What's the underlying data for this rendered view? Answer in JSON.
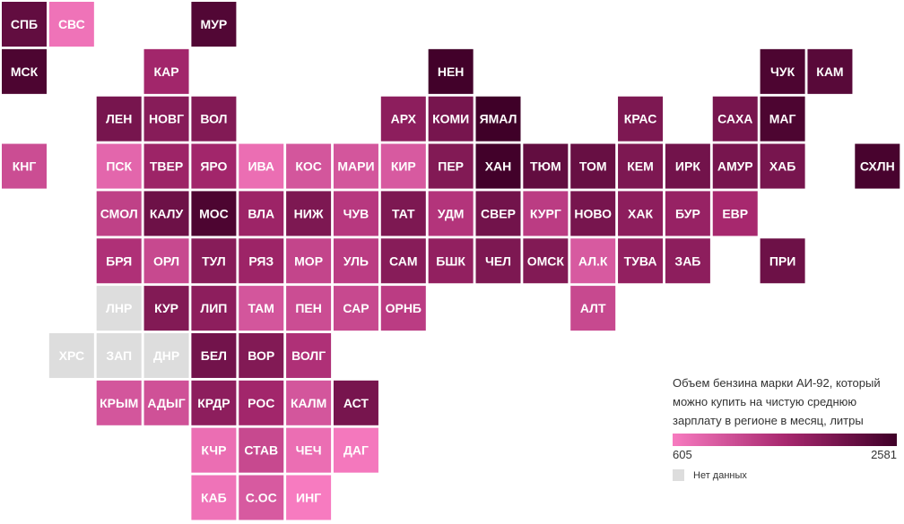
{
  "chart_data": {
    "type": "heatmap",
    "title": "",
    "value_min": 605,
    "value_max": 2581,
    "colors": {
      "low": "#f77bc0",
      "mid": "#a8286f",
      "high": "#3f0028",
      "nodata": "#dddddd"
    },
    "legend": {
      "title": "Объем бензина марки АИ-92, который можно купить на чистую среднюю зарплату в регионе в месяц, литры",
      "min_label": "605",
      "max_label": "2581",
      "nodata_label": "Нет данных"
    },
    "tiles": [
      {
        "code": "СПБ",
        "col": 0,
        "row": 0,
        "value": 2250
      },
      {
        "code": "СВС",
        "col": 1,
        "row": 0,
        "value": 700
      },
      {
        "code": "МУР",
        "col": 4,
        "row": 0,
        "value": 2400
      },
      {
        "code": "МСК",
        "col": 0,
        "row": 1,
        "value": 2450
      },
      {
        "code": "КАР",
        "col": 3,
        "row": 1,
        "value": 1650
      },
      {
        "code": "НЕН",
        "col": 9,
        "row": 1,
        "value": 2550
      },
      {
        "code": "ЧУК",
        "col": 16,
        "row": 1,
        "value": 2450
      },
      {
        "code": "КАМ",
        "col": 17,
        "row": 1,
        "value": 2350
      },
      {
        "code": "ЛЕН",
        "col": 2,
        "row": 2,
        "value": 2050
      },
      {
        "code": "НОВГ",
        "col": 3,
        "row": 2,
        "value": 1900
      },
      {
        "code": "ВОЛ",
        "col": 4,
        "row": 2,
        "value": 1950
      },
      {
        "code": "АРХ",
        "col": 8,
        "row": 2,
        "value": 1850
      },
      {
        "code": "КОМИ",
        "col": 9,
        "row": 2,
        "value": 2050
      },
      {
        "code": "ЯМАЛ",
        "col": 10,
        "row": 2,
        "value": 2581
      },
      {
        "code": "КРАС",
        "col": 13,
        "row": 2,
        "value": 2000
      },
      {
        "code": "САХА",
        "col": 15,
        "row": 2,
        "value": 2050
      },
      {
        "code": "МАГ",
        "col": 16,
        "row": 2,
        "value": 2450
      },
      {
        "code": "КНГ",
        "col": 0,
        "row": 3,
        "value": 1150
      },
      {
        "code": "ПСК",
        "col": 2,
        "row": 3,
        "value": 850
      },
      {
        "code": "ТВЕР",
        "col": 3,
        "row": 3,
        "value": 1700
      },
      {
        "code": "ЯРО",
        "col": 4,
        "row": 3,
        "value": 1650
      },
      {
        "code": "ИВА",
        "col": 5,
        "row": 3,
        "value": 760
      },
      {
        "code": "КОС",
        "col": 6,
        "row": 3,
        "value": 1050
      },
      {
        "code": "МАРИ",
        "col": 7,
        "row": 3,
        "value": 1050
      },
      {
        "code": "КИР",
        "col": 8,
        "row": 3,
        "value": 1000
      },
      {
        "code": "ПЕР",
        "col": 9,
        "row": 3,
        "value": 1950
      },
      {
        "code": "ХАН",
        "col": 10,
        "row": 3,
        "value": 2550
      },
      {
        "code": "ТЮМ",
        "col": 11,
        "row": 3,
        "value": 2250
      },
      {
        "code": "ТОМ",
        "col": 12,
        "row": 3,
        "value": 2200
      },
      {
        "code": "КЕМ",
        "col": 13,
        "row": 3,
        "value": 2000
      },
      {
        "code": "ИРК",
        "col": 14,
        "row": 3,
        "value": 2100
      },
      {
        "code": "АМУР",
        "col": 15,
        "row": 3,
        "value": 2050
      },
      {
        "code": "ХАБ",
        "col": 16,
        "row": 3,
        "value": 2050
      },
      {
        "code": "СХЛН",
        "col": 18,
        "row": 3,
        "value": 2500
      },
      {
        "code": "СМОЛ",
        "col": 2,
        "row": 4,
        "value": 1300
      },
      {
        "code": "КАЛУ",
        "col": 3,
        "row": 4,
        "value": 2150
      },
      {
        "code": "МОС",
        "col": 4,
        "row": 4,
        "value": 2450
      },
      {
        "code": "ВЛА",
        "col": 5,
        "row": 4,
        "value": 1700
      },
      {
        "code": "НИЖ",
        "col": 6,
        "row": 4,
        "value": 2000
      },
      {
        "code": "ЧУВ",
        "col": 7,
        "row": 4,
        "value": 1400
      },
      {
        "code": "ТАТ",
        "col": 8,
        "row": 4,
        "value": 2000
      },
      {
        "code": "УДМ",
        "col": 9,
        "row": 4,
        "value": 1450
      },
      {
        "code": "СВЕР",
        "col": 10,
        "row": 4,
        "value": 2100
      },
      {
        "code": "КУРГ",
        "col": 11,
        "row": 4,
        "value": 1350
      },
      {
        "code": "НОВО",
        "col": 12,
        "row": 4,
        "value": 2050
      },
      {
        "code": "ХАК",
        "col": 13,
        "row": 4,
        "value": 1850
      },
      {
        "code": "БУР",
        "col": 14,
        "row": 4,
        "value": 1750
      },
      {
        "code": "ЕВР",
        "col": 15,
        "row": 4,
        "value": 1600
      },
      {
        "code": "БРЯ",
        "col": 2,
        "row": 5,
        "value": 1500
      },
      {
        "code": "ОРЛ",
        "col": 3,
        "row": 5,
        "value": 1200
      },
      {
        "code": "ТУЛ",
        "col": 4,
        "row": 5,
        "value": 1900
      },
      {
        "code": "РЯЗ",
        "col": 5,
        "row": 5,
        "value": 1700
      },
      {
        "code": "МОР",
        "col": 6,
        "row": 5,
        "value": 1250
      },
      {
        "code": "УЛЬ",
        "col": 7,
        "row": 5,
        "value": 1350
      },
      {
        "code": "САМ",
        "col": 8,
        "row": 5,
        "value": 1900
      },
      {
        "code": "БШК",
        "col": 9,
        "row": 5,
        "value": 1800
      },
      {
        "code": "ЧЕЛ",
        "col": 10,
        "row": 5,
        "value": 2000
      },
      {
        "code": "ОМСК",
        "col": 11,
        "row": 5,
        "value": 1950
      },
      {
        "code": "АЛ.К",
        "col": 12,
        "row": 5,
        "value": 1000
      },
      {
        "code": "ТУВА",
        "col": 13,
        "row": 5,
        "value": 1800
      },
      {
        "code": "ЗАБ",
        "col": 14,
        "row": 5,
        "value": 1850
      },
      {
        "code": "ПРИ",
        "col": 16,
        "row": 5,
        "value": 2150
      },
      {
        "code": "ЛНР",
        "col": 2,
        "row": 6,
        "value": null
      },
      {
        "code": "КУР",
        "col": 3,
        "row": 6,
        "value": 1950
      },
      {
        "code": "ЛИП",
        "col": 4,
        "row": 6,
        "value": 1850
      },
      {
        "code": "ТАМ",
        "col": 5,
        "row": 6,
        "value": 1050
      },
      {
        "code": "ПЕН",
        "col": 6,
        "row": 6,
        "value": 1150
      },
      {
        "code": "САР",
        "col": 7,
        "row": 6,
        "value": 1200
      },
      {
        "code": "ОРНБ",
        "col": 8,
        "row": 6,
        "value": 1350
      },
      {
        "code": "АЛТ",
        "col": 12,
        "row": 6,
        "value": 1200
      },
      {
        "code": "ХРС",
        "col": 1,
        "row": 7,
        "value": null
      },
      {
        "code": "ЗАП",
        "col": 2,
        "row": 7,
        "value": null
      },
      {
        "code": "ДНР",
        "col": 3,
        "row": 7,
        "value": null
      },
      {
        "code": "БЕЛ",
        "col": 4,
        "row": 7,
        "value": 2100
      },
      {
        "code": "ВОР",
        "col": 5,
        "row": 7,
        "value": 1950
      },
      {
        "code": "ВОЛГ",
        "col": 6,
        "row": 7,
        "value": 1500
      },
      {
        "code": "КРЫМ",
        "col": 2,
        "row": 8,
        "value": 1050
      },
      {
        "code": "АДЫГ",
        "col": 3,
        "row": 8,
        "value": 1100
      },
      {
        "code": "КРДР",
        "col": 4,
        "row": 8,
        "value": 1850
      },
      {
        "code": "РОС",
        "col": 5,
        "row": 8,
        "value": 1650
      },
      {
        "code": "КАЛМ",
        "col": 6,
        "row": 8,
        "value": 1050
      },
      {
        "code": "АСТ",
        "col": 7,
        "row": 8,
        "value": 2050
      },
      {
        "code": "КЧР",
        "col": 4,
        "row": 9,
        "value": 760
      },
      {
        "code": "СТАВ",
        "col": 5,
        "row": 9,
        "value": 1200
      },
      {
        "code": "ЧЕЧ",
        "col": 6,
        "row": 9,
        "value": 760
      },
      {
        "code": "ДАГ",
        "col": 7,
        "row": 9,
        "value": 640
      },
      {
        "code": "КАБ",
        "col": 4,
        "row": 10,
        "value": 700
      },
      {
        "code": "С.ОС",
        "col": 5,
        "row": 10,
        "value": 1000
      },
      {
        "code": "ИНГ",
        "col": 6,
        "row": 10,
        "value": 605
      }
    ]
  }
}
